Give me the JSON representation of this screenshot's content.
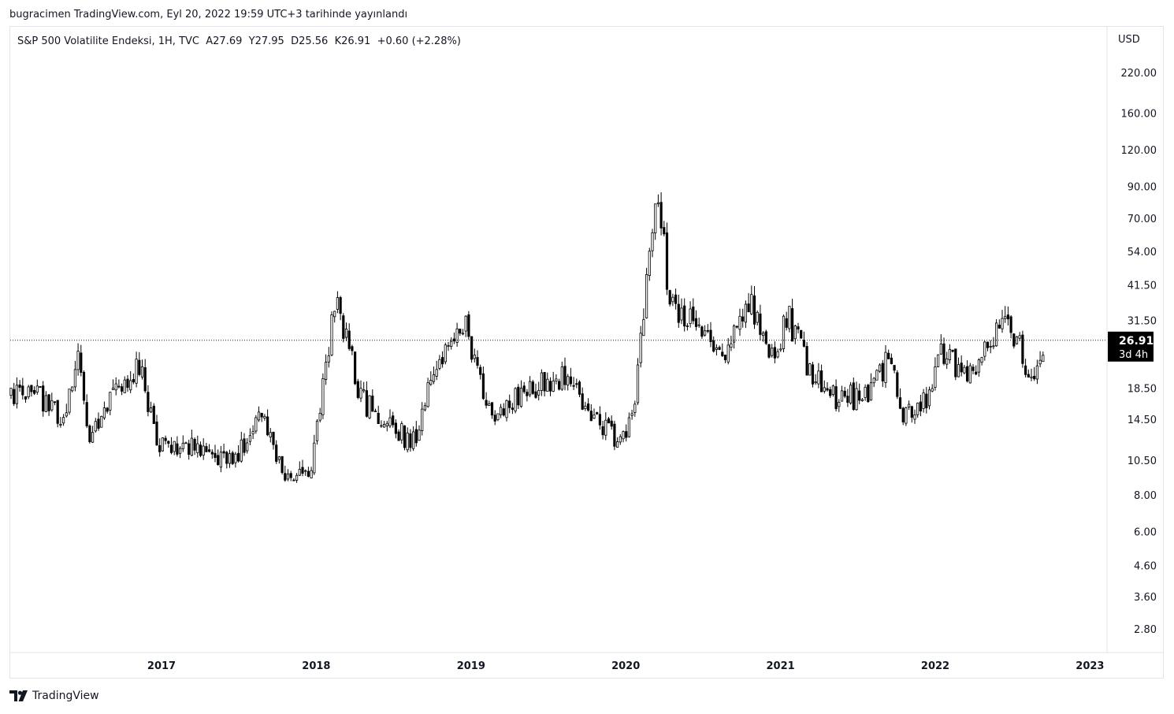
{
  "published": "bugracimen TradingView.com, Eyl 20, 2022 19:59 UTC+3 tarihinde yayınlandı",
  "legend": {
    "symbol": "S&P 500 Volatilite Endeksi, 1H, TVC",
    "open": "A27.69",
    "high": "Y27.95",
    "low": "D25.56",
    "close": "K26.91",
    "change": "+0.60 (+2.28%)"
  },
  "currency": "USD",
  "price_label": {
    "value": "26.91",
    "countdown": "3d 4h",
    "bg": "#000000",
    "fg": "#ffffff"
  },
  "branding": "TradingView",
  "colors": {
    "up": "#ffffff",
    "down": "#000000",
    "outline": "#000000"
  },
  "chart_data": {
    "type": "candlestick",
    "title": "S&P 500 Volatilite Endeksi, 1H, TVC",
    "y_scale": "log",
    "y_ticks": [
      "220.00",
      "160.00",
      "120.00",
      "90.00",
      "70.00",
      "54.00",
      "41.50",
      "31.50",
      "18.50",
      "14.50",
      "10.50",
      "8.00",
      "6.00",
      "4.60",
      "3.60",
      "2.80"
    ],
    "x_ticks": [
      "2017",
      "2018",
      "2019",
      "2020",
      "2021",
      "2022",
      "2023"
    ],
    "last_price": 26.91,
    "grid": false,
    "series": [
      {
        "date": "2016-03",
        "value": 17.2
      },
      {
        "date": "2016-05",
        "value": 14.1
      },
      {
        "date": "2016-06",
        "value": 25.8
      },
      {
        "date": "2016-07",
        "value": 12.0
      },
      {
        "date": "2016-09",
        "value": 18.1
      },
      {
        "date": "2016-11",
        "value": 22.5
      },
      {
        "date": "2016-12",
        "value": 12.1
      },
      {
        "date": "2017-03",
        "value": 11.5
      },
      {
        "date": "2017-05",
        "value": 10.2
      },
      {
        "date": "2017-07",
        "value": 11.7
      },
      {
        "date": "2017-08",
        "value": 15.8
      },
      {
        "date": "2017-10",
        "value": 9.6
      },
      {
        "date": "2017-12",
        "value": 9.8
      },
      {
        "date": "2018-02",
        "value": 37.3
      },
      {
        "date": "2018-04",
        "value": 17.0
      },
      {
        "date": "2018-06",
        "value": 13.9
      },
      {
        "date": "2018-08",
        "value": 12.0
      },
      {
        "date": "2018-10",
        "value": 23.0
      },
      {
        "date": "2018-12",
        "value": 30.1
      },
      {
        "date": "2019-02",
        "value": 15.1
      },
      {
        "date": "2019-05",
        "value": 18.7
      },
      {
        "date": "2019-08",
        "value": 20.3
      },
      {
        "date": "2019-10",
        "value": 14.0
      },
      {
        "date": "2019-12",
        "value": 12.5
      },
      {
        "date": "2020-01",
        "value": 13.8
      },
      {
        "date": "2020-02",
        "value": 40.1
      },
      {
        "date": "2020-03",
        "value": 82.7
      },
      {
        "date": "2020-04",
        "value": 34.2
      },
      {
        "date": "2020-06",
        "value": 30.4
      },
      {
        "date": "2020-08",
        "value": 22.3
      },
      {
        "date": "2020-10",
        "value": 38.0
      },
      {
        "date": "2020-12",
        "value": 22.8
      },
      {
        "date": "2021-01",
        "value": 33.1
      },
      {
        "date": "2021-03",
        "value": 20.0
      },
      {
        "date": "2021-05",
        "value": 16.8
      },
      {
        "date": "2021-07",
        "value": 17.6
      },
      {
        "date": "2021-09",
        "value": 23.1
      },
      {
        "date": "2021-10",
        "value": 15.0
      },
      {
        "date": "2021-12",
        "value": 17.2
      },
      {
        "date": "2022-01",
        "value": 24.8
      },
      {
        "date": "2022-03",
        "value": 20.6
      },
      {
        "date": "2022-05",
        "value": 28.4
      },
      {
        "date": "2022-06",
        "value": 33.0
      },
      {
        "date": "2022-08",
        "value": 19.5
      },
      {
        "date": "2022-09",
        "value": 26.91
      }
    ]
  }
}
